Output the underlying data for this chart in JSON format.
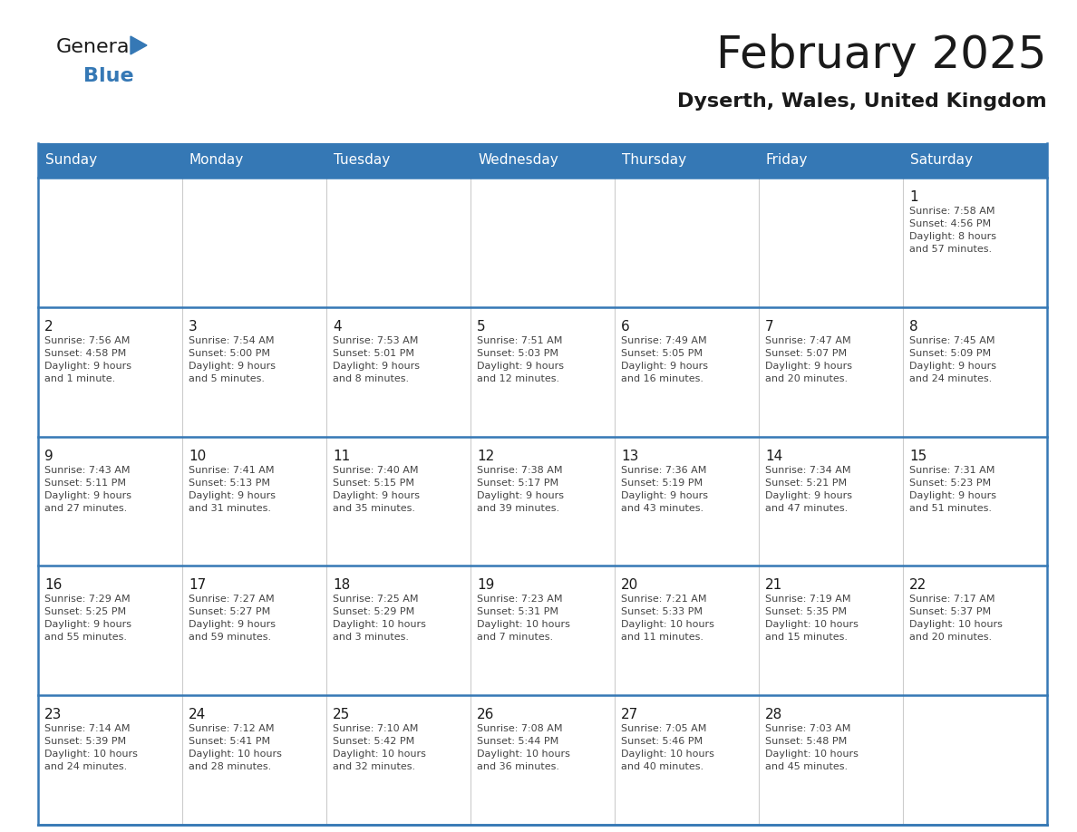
{
  "title": "February 2025",
  "subtitle": "Dyserth, Wales, United Kingdom",
  "header_bg_color": "#3578b5",
  "header_text_color": "#ffffff",
  "cell_bg_color": "#ffffff",
  "border_color": "#3578b5",
  "separator_color": "#cccccc",
  "day_headers": [
    "Sunday",
    "Monday",
    "Tuesday",
    "Wednesday",
    "Thursday",
    "Friday",
    "Saturday"
  ],
  "weeks": [
    [
      {
        "day": null,
        "info": null
      },
      {
        "day": null,
        "info": null
      },
      {
        "day": null,
        "info": null
      },
      {
        "day": null,
        "info": null
      },
      {
        "day": null,
        "info": null
      },
      {
        "day": null,
        "info": null
      },
      {
        "day": 1,
        "info": "Sunrise: 7:58 AM\nSunset: 4:56 PM\nDaylight: 8 hours\nand 57 minutes."
      }
    ],
    [
      {
        "day": 2,
        "info": "Sunrise: 7:56 AM\nSunset: 4:58 PM\nDaylight: 9 hours\nand 1 minute."
      },
      {
        "day": 3,
        "info": "Sunrise: 7:54 AM\nSunset: 5:00 PM\nDaylight: 9 hours\nand 5 minutes."
      },
      {
        "day": 4,
        "info": "Sunrise: 7:53 AM\nSunset: 5:01 PM\nDaylight: 9 hours\nand 8 minutes."
      },
      {
        "day": 5,
        "info": "Sunrise: 7:51 AM\nSunset: 5:03 PM\nDaylight: 9 hours\nand 12 minutes."
      },
      {
        "day": 6,
        "info": "Sunrise: 7:49 AM\nSunset: 5:05 PM\nDaylight: 9 hours\nand 16 minutes."
      },
      {
        "day": 7,
        "info": "Sunrise: 7:47 AM\nSunset: 5:07 PM\nDaylight: 9 hours\nand 20 minutes."
      },
      {
        "day": 8,
        "info": "Sunrise: 7:45 AM\nSunset: 5:09 PM\nDaylight: 9 hours\nand 24 minutes."
      }
    ],
    [
      {
        "day": 9,
        "info": "Sunrise: 7:43 AM\nSunset: 5:11 PM\nDaylight: 9 hours\nand 27 minutes."
      },
      {
        "day": 10,
        "info": "Sunrise: 7:41 AM\nSunset: 5:13 PM\nDaylight: 9 hours\nand 31 minutes."
      },
      {
        "day": 11,
        "info": "Sunrise: 7:40 AM\nSunset: 5:15 PM\nDaylight: 9 hours\nand 35 minutes."
      },
      {
        "day": 12,
        "info": "Sunrise: 7:38 AM\nSunset: 5:17 PM\nDaylight: 9 hours\nand 39 minutes."
      },
      {
        "day": 13,
        "info": "Sunrise: 7:36 AM\nSunset: 5:19 PM\nDaylight: 9 hours\nand 43 minutes."
      },
      {
        "day": 14,
        "info": "Sunrise: 7:34 AM\nSunset: 5:21 PM\nDaylight: 9 hours\nand 47 minutes."
      },
      {
        "day": 15,
        "info": "Sunrise: 7:31 AM\nSunset: 5:23 PM\nDaylight: 9 hours\nand 51 minutes."
      }
    ],
    [
      {
        "day": 16,
        "info": "Sunrise: 7:29 AM\nSunset: 5:25 PM\nDaylight: 9 hours\nand 55 minutes."
      },
      {
        "day": 17,
        "info": "Sunrise: 7:27 AM\nSunset: 5:27 PM\nDaylight: 9 hours\nand 59 minutes."
      },
      {
        "day": 18,
        "info": "Sunrise: 7:25 AM\nSunset: 5:29 PM\nDaylight: 10 hours\nand 3 minutes."
      },
      {
        "day": 19,
        "info": "Sunrise: 7:23 AM\nSunset: 5:31 PM\nDaylight: 10 hours\nand 7 minutes."
      },
      {
        "day": 20,
        "info": "Sunrise: 7:21 AM\nSunset: 5:33 PM\nDaylight: 10 hours\nand 11 minutes."
      },
      {
        "day": 21,
        "info": "Sunrise: 7:19 AM\nSunset: 5:35 PM\nDaylight: 10 hours\nand 15 minutes."
      },
      {
        "day": 22,
        "info": "Sunrise: 7:17 AM\nSunset: 5:37 PM\nDaylight: 10 hours\nand 20 minutes."
      }
    ],
    [
      {
        "day": 23,
        "info": "Sunrise: 7:14 AM\nSunset: 5:39 PM\nDaylight: 10 hours\nand 24 minutes."
      },
      {
        "day": 24,
        "info": "Sunrise: 7:12 AM\nSunset: 5:41 PM\nDaylight: 10 hours\nand 28 minutes."
      },
      {
        "day": 25,
        "info": "Sunrise: 7:10 AM\nSunset: 5:42 PM\nDaylight: 10 hours\nand 32 minutes."
      },
      {
        "day": 26,
        "info": "Sunrise: 7:08 AM\nSunset: 5:44 PM\nDaylight: 10 hours\nand 36 minutes."
      },
      {
        "day": 27,
        "info": "Sunrise: 7:05 AM\nSunset: 5:46 PM\nDaylight: 10 hours\nand 40 minutes."
      },
      {
        "day": 28,
        "info": "Sunrise: 7:03 AM\nSunset: 5:48 PM\nDaylight: 10 hours\nand 45 minutes."
      },
      {
        "day": null,
        "info": null
      }
    ]
  ],
  "logo_general_color": "#1a1a1a",
  "logo_blue_color": "#3578b5",
  "logo_triangle_color": "#3578b5",
  "title_fontsize": 36,
  "subtitle_fontsize": 16,
  "header_fontsize": 11,
  "day_num_fontsize": 11,
  "info_fontsize": 8
}
